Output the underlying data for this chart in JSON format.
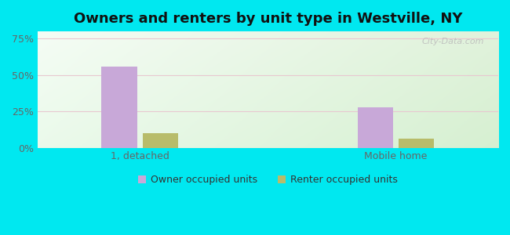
{
  "title": "Owners and renters by unit type in Westville, NY",
  "categories": [
    "1, detached",
    "Mobile home"
  ],
  "owner_values": [
    56,
    28
  ],
  "renter_values": [
    10,
    6
  ],
  "owner_color": "#c8a8d8",
  "renter_color": "#b8bc6a",
  "yticks": [
    0,
    25,
    50,
    75
  ],
  "ytick_labels": [
    "0%",
    "25%",
    "50%",
    "75%"
  ],
  "ylim": [
    0,
    80
  ],
  "bg_outer": "#00e8f0",
  "legend_owner": "Owner occupied units",
  "legend_renter": "Renter occupied units",
  "bar_width": 0.28,
  "watermark": "City-Data.com",
  "grid_color": "#e8c8d0",
  "tick_color": "#666666"
}
